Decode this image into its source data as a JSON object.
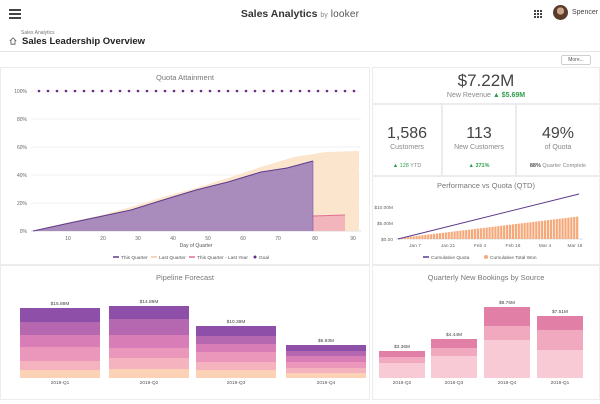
{
  "header": {
    "app_title": "Sales Analytics",
    "by": "by",
    "brand": "looker",
    "user_name": "Spencer",
    "breadcrumb": "Sales Analytics",
    "page_title": "Sales Leadership Overview",
    "more_label": "More..."
  },
  "colors": {
    "purple": "#7b4fa6",
    "goal": "#6a2a8a",
    "peach": "#fbe0c2",
    "pink": "#e89cb5",
    "orange": "#f5a97a"
  },
  "quota_attainment": {
    "title": "Quota Attainment",
    "chart_data": {
      "type": "area",
      "title": "Quota Attainment",
      "xlabel": "Day of Quarter",
      "xlim": [
        0,
        92
      ],
      "ylim": [
        0,
        100
      ],
      "x_ticks": [
        "10",
        "20",
        "30",
        "40",
        "50",
        "60",
        "70",
        "80",
        "90"
      ],
      "y_ticks": [
        "0%",
        "20%",
        "40%",
        "60%",
        "80%",
        "100%"
      ],
      "series": [
        {
          "name": "This Quarter",
          "x": [
            0,
            10,
            20,
            30,
            40,
            50,
            60,
            70,
            78
          ],
          "y": [
            0,
            5,
            10,
            15,
            22,
            29,
            35,
            42,
            45
          ]
        },
        {
          "name": "Last Quarter",
          "x": [
            0,
            10,
            20,
            30,
            40,
            50,
            60,
            70,
            80,
            90
          ],
          "y": [
            0,
            6,
            11,
            17,
            24,
            31,
            38,
            46,
            53,
            57
          ]
        },
        {
          "name": "This Quarter - Last Year",
          "x": [
            80,
            90
          ],
          "y": [
            11,
            12
          ]
        },
        {
          "name": "Goal",
          "y": 100
        }
      ]
    }
  },
  "kpi_revenue": {
    "value": "$7.22M",
    "label": "New Revenue",
    "delta": "▲ $5.69M"
  },
  "kpi_customers": {
    "value": "1,586",
    "label": "Customers",
    "delta": "▲ 128",
    "delta_unit": "YTD"
  },
  "kpi_new_customers": {
    "value": "113",
    "label": "New Customers",
    "delta": "▲ 371%"
  },
  "kpi_quota": {
    "value": "49%",
    "label": "of Quota",
    "delta": "88%",
    "delta_unit": "Quarter Complete"
  },
  "perf_vs_quota": {
    "title": "Performance vs Quota (QTD)",
    "chart_data": {
      "type": "bar",
      "title": "Performance vs Quota (QTD)",
      "x_ticks": [
        "Jan 7",
        "Jan 21",
        "Feb 4",
        "Feb 18",
        "Mar 4",
        "Mar 18"
      ],
      "y_ticks": [
        "$0.00",
        "$5.00M",
        "$10.00M"
      ],
      "ylim": [
        0,
        10.5
      ],
      "series": [
        {
          "name": "Cumulative Quota",
          "type": "line",
          "y_start": 0,
          "y_end": 14.2
        },
        {
          "name": "Cumulative Total Won",
          "type": "bar",
          "y_start": 0.3,
          "y_end": 7.22
        }
      ]
    }
  },
  "pipeline_forecast": {
    "title": "Pipeline Forecast",
    "chart_data": {
      "type": "bar",
      "title": "Pipeline Forecast",
      "categories": [
        "2019-Q1",
        "2019-Q2",
        "2019-Q3",
        "2019-Q4"
      ],
      "totals": [
        "$15.88M",
        "$14.89M",
        "$10.38M",
        "$6.93M"
      ],
      "values": [
        15.88,
        14.89,
        10.38,
        6.93
      ]
    }
  },
  "bookings_by_source": {
    "title": "Quarterly New Bookings by Source",
    "chart_data": {
      "type": "bar",
      "title": "Quarterly New Bookings by Source",
      "categories": [
        "2018-Q2",
        "2018-Q3",
        "2018-Q4",
        "2019-Q1"
      ],
      "totals": [
        "$3.36M",
        "$4.44M",
        "$8.76M",
        "$7.51M"
      ],
      "values": [
        3.36,
        4.44,
        8.76,
        7.51
      ]
    }
  }
}
